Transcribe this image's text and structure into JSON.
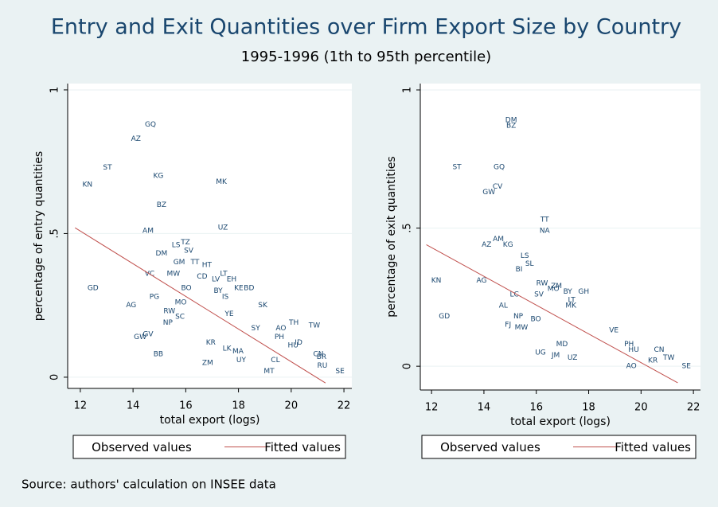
{
  "title": "Entry and Exit Quantities over Firm Export Size by Country",
  "subtitle": "1995-1996 (1th to 95th percentile)",
  "note": "Source: authors' calculation on INSEE data",
  "chart_data": [
    {
      "type": "scatter",
      "x_label": "total export (logs)",
      "y_label": "percentage of entry quantities",
      "xlim": [
        11.52,
        22.3
      ],
      "ylim": [
        -0.039,
        1.022
      ],
      "xticks": [
        12,
        14,
        16,
        18,
        20,
        22
      ],
      "yticks": [
        0,
        {
          "value": 0.5,
          "label": ".5"
        },
        1
      ],
      "grid": true,
      "series": [
        {
          "name": "Observed values",
          "color": "#1a476f",
          "x": [
            14.66,
            14.11,
            13.03,
            12.27,
            14.96,
            17.35,
            15.08,
            14.57,
            17.41,
            15.63,
            15.99,
            16.11,
            15.08,
            15.75,
            16.35,
            16.8,
            15.53,
            16.62,
            17.14,
            17.44,
            17.74,
            18.01,
            18.4,
            17.23,
            17.5,
            12.48,
            14.63,
            14.81,
            16.02,
            15.81,
            13.93,
            18.92,
            15.38,
            17.65,
            15.32,
            15.78,
            20.1,
            20.88,
            19.61,
            18.65,
            14.57,
            14.27,
            14.96,
            16.83,
            18.1,
            19.55,
            20.28,
            19.16,
            19.4,
            21.85,
            16.95,
            17.56,
            17.98,
            21.03,
            21.18,
            20.07,
            21.15
          ],
          "values": [
            0.88,
            0.83,
            0.73,
            0.67,
            0.7,
            0.68,
            0.6,
            0.51,
            0.52,
            0.46,
            0.47,
            0.44,
            0.43,
            0.4,
            0.4,
            0.39,
            0.36,
            0.35,
            0.34,
            0.36,
            0.34,
            0.31,
            0.31,
            0.3,
            0.28,
            0.31,
            0.36,
            0.28,
            0.31,
            0.26,
            0.25,
            0.25,
            0.23,
            0.22,
            0.19,
            0.21,
            0.19,
            0.18,
            0.17,
            0.17,
            0.15,
            0.14,
            0.08,
            0.05,
            0.06,
            0.14,
            0.12,
            0.02,
            0.06,
            0.02,
            0.12,
            0.1,
            0.09,
            0.08,
            0.04,
            0.11,
            0.07
          ],
          "point_labels": [
            "GQ",
            "AZ",
            "ST",
            "KN",
            "KG",
            "MK",
            "BZ",
            "AM",
            "UZ",
            "LS",
            "TZ",
            "SV",
            "DM",
            "GM",
            "TT",
            "HT",
            "MW",
            "CD",
            "LV",
            "LT",
            "EH",
            "KE",
            "BD",
            "BY",
            "IS",
            "GD",
            "VC",
            "PG",
            "BO",
            "MO",
            "AG",
            "SK",
            "RW",
            "YE",
            "NP",
            "SC",
            "TH",
            "TW",
            "AO",
            "SY",
            "GV",
            "GW",
            "BB",
            "ZM",
            "UY",
            "PH",
            "ID",
            "MT",
            "CL",
            "SE",
            "KR",
            "LK",
            "MA",
            "CN",
            "RU",
            "HU",
            "BR"
          ]
        },
        {
          "name": "Fitted values",
          "color": "#c0504d",
          "x": [
            11.8,
            21.3
          ],
          "values": [
            0.52,
            -0.02
          ]
        }
      ]
    },
    {
      "type": "scatter",
      "x_label": "total export (logs)",
      "y_label": "percentage of exit quantities",
      "xlim": [
        11.57,
        22.27
      ],
      "ylim": [
        -0.086,
        1.023
      ],
      "xticks": [
        12,
        14,
        16,
        18,
        20,
        22
      ],
      "yticks": [
        0,
        {
          "value": 0.5,
          "label": ".5"
        },
        1
      ],
      "grid": true,
      "series": [
        {
          "name": "Observed values",
          "color": "#1a476f",
          "x": [
            15.04,
            15.04,
            12.97,
            14.58,
            14.52,
            14.19,
            16.32,
            16.32,
            14.1,
            14.55,
            14.92,
            15.56,
            15.74,
            15.34,
            12.18,
            13.91,
            16.22,
            16.65,
            16.77,
            16.1,
            15.16,
            17.2,
            17.81,
            17.35,
            17.32,
            14.74,
            12.49,
            15.31,
            15.98,
            14.92,
            15.43,
            18.96,
            19.54,
            16.16,
            16.74,
            17.38,
            19.63,
            21.73,
            16.98,
            19.72,
            20.69,
            21.06,
            20.45
          ],
          "values": [
            0.89,
            0.87,
            0.72,
            0.72,
            0.65,
            0.63,
            0.53,
            0.49,
            0.44,
            0.46,
            0.44,
            0.4,
            0.37,
            0.35,
            0.31,
            0.31,
            0.3,
            0.28,
            0.29,
            0.26,
            0.26,
            0.27,
            0.27,
            0.24,
            0.22,
            0.22,
            0.18,
            0.18,
            0.17,
            0.15,
            0.14,
            0.13,
            0.08,
            0.05,
            0.04,
            0.03,
            0.0,
            0.0,
            0.08,
            0.06,
            0.06,
            0.03,
            0.02
          ],
          "point_labels": [
            "DM",
            "BZ",
            "ST",
            "GQ",
            "CV",
            "GW",
            "TT",
            "NA",
            "AZ",
            "AM",
            "KG",
            "LS",
            "SL",
            "BI",
            "KN",
            "AG",
            "RW",
            "MO",
            "ZM",
            "SV",
            "LC",
            "BY",
            "GH",
            "LT",
            "MK",
            "AL",
            "GD",
            "NP",
            "BO",
            "FJ",
            "MW",
            "VE",
            "PH",
            "UG",
            "JM",
            "UZ",
            "AO",
            "SE",
            "MD",
            "HU",
            "CN",
            "TW",
            "KR"
          ]
        },
        {
          "name": "Fitted values",
          "color": "#c0504d",
          "x": [
            11.8,
            21.4
          ],
          "values": [
            0.44,
            -0.06
          ]
        }
      ]
    }
  ]
}
